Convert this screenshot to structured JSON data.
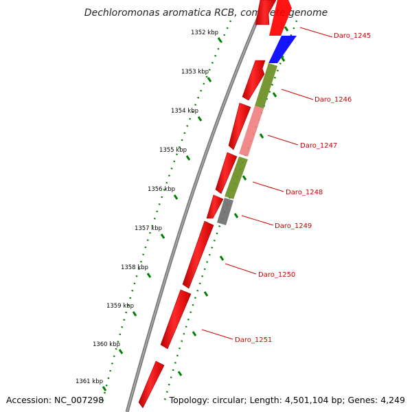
{
  "title": "Dechloromonas aromatica RCB, complete genome",
  "footer": {
    "accession": "Accession: NC_007298",
    "summary": "Topology: circular; Length: 4,501,104 bp; Genes: 4,249"
  },
  "colors": {
    "forward_gene": "#ff0000",
    "backbone": "#7f7f7f",
    "ruler": "#008000",
    "label": "#cc0000",
    "segment_blue": "#0000ff",
    "segment_olive": "#6b8e23",
    "segment_pink": "#f08080",
    "segment_gray": "#6e6e6e"
  },
  "ruler": {
    "ticks": [
      {
        "kbp": 1352,
        "label": "1352 kbp"
      },
      {
        "kbp": 1353,
        "label": "1353 kbp"
      },
      {
        "kbp": 1354,
        "label": "1354 kbp"
      },
      {
        "kbp": 1355,
        "label": "1355 kbp"
      },
      {
        "kbp": 1356,
        "label": "1356 kbp"
      },
      {
        "kbp": 1357,
        "label": "1357 kbp"
      },
      {
        "kbp": 1358,
        "label": "1358 kbp"
      },
      {
        "kbp": 1359,
        "label": "1359 kbp"
      },
      {
        "kbp": 1360,
        "label": "1360 kbp"
      },
      {
        "kbp": 1361,
        "label": "1361 kbp"
      }
    ]
  },
  "genes": [
    {
      "id": "Daro_1245",
      "label": "Daro_1245"
    },
    {
      "id": "Daro_1246",
      "label": "Daro_1246"
    },
    {
      "id": "Daro_1247",
      "label": "Daro_1247"
    },
    {
      "id": "Daro_1248",
      "label": "Daro_1248"
    },
    {
      "id": "Daro_1249",
      "label": "Daro_1249"
    },
    {
      "id": "Daro_1250",
      "label": "Daro_1250"
    },
    {
      "id": "Daro_1251",
      "label": "Daro_1251"
    }
  ]
}
